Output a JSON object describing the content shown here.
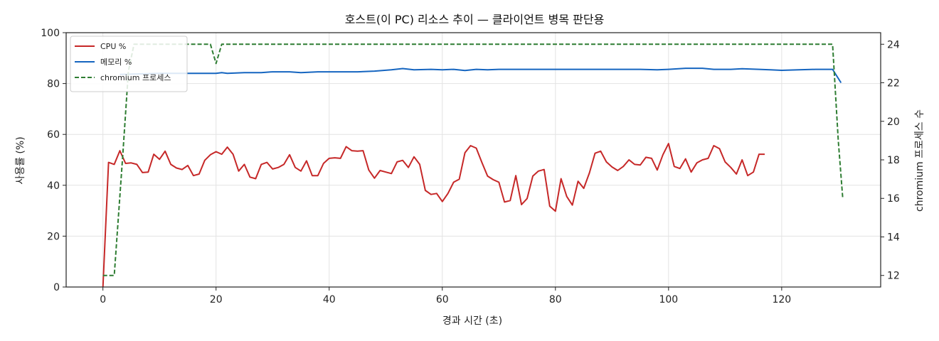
{
  "chart_data": {
    "type": "line",
    "title": "호스트(이 PC) 리소스 추이 — 클라이언트 병목 판단용",
    "xlabel": "경과 시간 (초)",
    "ylabel": "사용률 (%)",
    "y2label": "chromium 프로세스 수",
    "xlim": [
      -6.5,
      137.5
    ],
    "ylim": [
      0,
      100
    ],
    "y2lim": [
      11.4,
      24.6
    ],
    "xticks": [
      0,
      20,
      40,
      60,
      80,
      100,
      120
    ],
    "yticks": [
      0,
      20,
      40,
      60,
      80,
      100
    ],
    "y2ticks": [
      12,
      14,
      16,
      18,
      20,
      22,
      24
    ],
    "grid": true,
    "legend_position": "top-left",
    "series": [
      {
        "name": "CPU %",
        "axis": "left",
        "color": "#c62828",
        "dash": "solid",
        "points": [
          [
            0,
            0
          ],
          [
            1,
            49
          ],
          [
            2,
            48.2
          ],
          [
            3,
            53.6
          ],
          [
            4,
            48.6
          ],
          [
            5,
            48.8
          ],
          [
            6,
            48.2
          ],
          [
            7,
            45
          ],
          [
            8,
            45.2
          ],
          [
            9,
            52.2
          ],
          [
            10,
            50.2
          ],
          [
            11,
            53.4
          ],
          [
            12,
            48.2
          ],
          [
            13,
            46.8
          ],
          [
            14,
            46.2
          ],
          [
            15,
            47.8
          ],
          [
            16,
            43.8
          ],
          [
            17,
            44.4
          ],
          [
            18,
            49.8
          ],
          [
            19,
            52
          ],
          [
            20,
            53.2
          ],
          [
            21,
            52.2
          ],
          [
            22,
            55
          ],
          [
            23,
            52.2
          ],
          [
            24,
            45.6
          ],
          [
            25,
            48.2
          ],
          [
            26,
            43.2
          ],
          [
            27,
            42.6
          ],
          [
            28,
            48.2
          ],
          [
            29,
            49
          ],
          [
            30,
            46.4
          ],
          [
            31,
            47
          ],
          [
            32,
            48.2
          ],
          [
            33,
            52
          ],
          [
            34,
            47
          ],
          [
            35,
            45.6
          ],
          [
            36,
            49.6
          ],
          [
            37,
            43.8
          ],
          [
            38,
            43.8
          ],
          [
            39,
            48.6
          ],
          [
            40,
            50.6
          ],
          [
            41,
            50.8
          ],
          [
            42,
            50.6
          ],
          [
            43,
            55.2
          ],
          [
            44,
            53.6
          ],
          [
            45,
            53.4
          ],
          [
            46,
            53.6
          ],
          [
            47,
            46
          ],
          [
            48,
            42.8
          ],
          [
            49,
            45.8
          ],
          [
            50,
            45.2
          ],
          [
            51,
            44.6
          ],
          [
            52,
            49.2
          ],
          [
            53,
            49.8
          ],
          [
            54,
            47
          ],
          [
            55,
            51.2
          ],
          [
            56,
            48.2
          ],
          [
            57,
            38
          ],
          [
            58,
            36.4
          ],
          [
            59,
            36.8
          ],
          [
            60,
            33.6
          ],
          [
            61,
            36.8
          ],
          [
            62,
            41.2
          ],
          [
            63,
            42.4
          ],
          [
            64,
            52.8
          ],
          [
            65,
            55.6
          ],
          [
            66,
            54.6
          ],
          [
            67,
            49
          ],
          [
            68,
            43.6
          ],
          [
            69,
            42.2
          ],
          [
            70,
            41.2
          ],
          [
            71,
            33.4
          ],
          [
            72,
            34
          ],
          [
            73,
            43.8
          ],
          [
            74,
            32.4
          ],
          [
            75,
            34.8
          ],
          [
            76,
            43.6
          ],
          [
            77,
            45.6
          ],
          [
            78,
            46.2
          ],
          [
            79,
            31.8
          ],
          [
            80,
            29.8
          ],
          [
            81,
            42.6
          ],
          [
            82,
            35.6
          ],
          [
            83,
            32.2
          ],
          [
            84,
            41.6
          ],
          [
            85,
            38.8
          ],
          [
            86,
            44.8
          ],
          [
            87,
            52.6
          ],
          [
            88,
            53.4
          ],
          [
            89,
            49.2
          ],
          [
            90,
            47.2
          ],
          [
            91,
            45.8
          ],
          [
            92,
            47.4
          ],
          [
            93,
            50
          ],
          [
            94,
            48.2
          ],
          [
            95,
            48
          ],
          [
            96,
            51
          ],
          [
            97,
            50.6
          ],
          [
            98,
            46
          ],
          [
            99,
            52
          ],
          [
            100,
            56.4
          ],
          [
            101,
            47.4
          ],
          [
            102,
            46.6
          ],
          [
            103,
            50.4
          ],
          [
            104,
            45.2
          ],
          [
            105,
            48.8
          ],
          [
            106,
            50
          ],
          [
            107,
            50.6
          ],
          [
            108,
            55.6
          ],
          [
            109,
            54.4
          ],
          [
            110,
            49.2
          ],
          [
            111,
            47
          ],
          [
            112,
            44.4
          ],
          [
            113,
            50
          ],
          [
            114,
            43.8
          ],
          [
            115,
            45.2
          ],
          [
            116,
            52.2
          ],
          [
            117,
            52.2
          ]
        ]
      },
      {
        "name": "메모리 %",
        "axis": "left",
        "color": "#1565c0",
        "dash": "solid",
        "points": [
          [
            3,
            83.6
          ],
          [
            10,
            84.0
          ],
          [
            20,
            84.0
          ],
          [
            21,
            84.3
          ],
          [
            22,
            84.0
          ],
          [
            25,
            84.3
          ],
          [
            28,
            84.3
          ],
          [
            30,
            84.6
          ],
          [
            33,
            84.6
          ],
          [
            35,
            84.3
          ],
          [
            38,
            84.6
          ],
          [
            42,
            84.6
          ],
          [
            45,
            84.6
          ],
          [
            48,
            84.9
          ],
          [
            51,
            85.4
          ],
          [
            53,
            85.9
          ],
          [
            55,
            85.4
          ],
          [
            58,
            85.6
          ],
          [
            60,
            85.4
          ],
          [
            62,
            85.6
          ],
          [
            64,
            85.1
          ],
          [
            66,
            85.6
          ],
          [
            68,
            85.4
          ],
          [
            70,
            85.6
          ],
          [
            76,
            85.6
          ],
          [
            80,
            85.6
          ],
          [
            85,
            85.6
          ],
          [
            88,
            85.6
          ],
          [
            92,
            85.6
          ],
          [
            95,
            85.6
          ],
          [
            98,
            85.4
          ],
          [
            100,
            85.6
          ],
          [
            103,
            86
          ],
          [
            106,
            86
          ],
          [
            108,
            85.6
          ],
          [
            111,
            85.6
          ],
          [
            113,
            85.8
          ],
          [
            116,
            85.6
          ],
          [
            118,
            85.4
          ],
          [
            120,
            85.2
          ],
          [
            123,
            85.4
          ],
          [
            126,
            85.6
          ],
          [
            129,
            85.6
          ],
          [
            130.5,
            80.3
          ]
        ]
      },
      {
        "name": "chromium 프로세스",
        "axis": "right",
        "color": "#2e7d32",
        "dash": "dashed",
        "points": [
          [
            0,
            12
          ],
          [
            2,
            12
          ],
          [
            3.5,
            18.2
          ],
          [
            4.5,
            22.6
          ],
          [
            5.5,
            24
          ],
          [
            19,
            24
          ],
          [
            20,
            23
          ],
          [
            21,
            24
          ],
          [
            129,
            24
          ],
          [
            130,
            19
          ],
          [
            130.8,
            16
          ]
        ]
      }
    ]
  }
}
